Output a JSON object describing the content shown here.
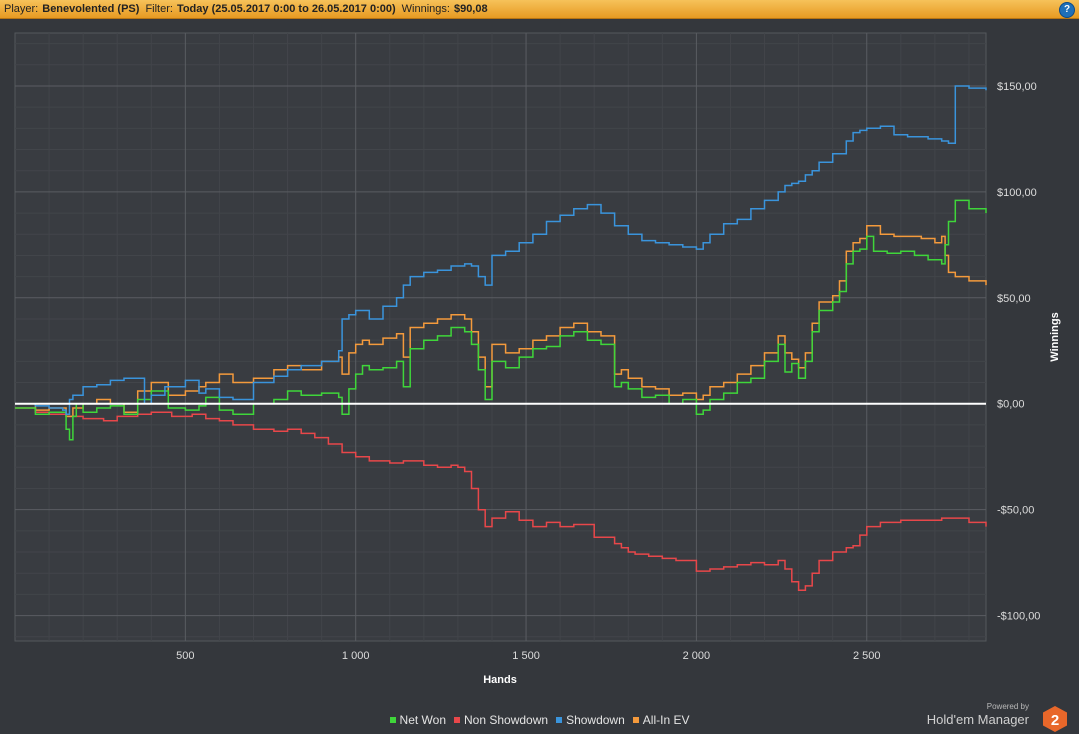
{
  "header": {
    "player_label": "Player:",
    "player_value": "Benevolented (PS)",
    "filter_label": "Filter:",
    "filter_value": "Today (25.05.2017 0:00 to 26.05.2017 0:00)",
    "winnings_label": "Winnings:",
    "winnings_value": "$90,08",
    "help_label": "?"
  },
  "brand": {
    "powered": "Powered by",
    "name": "Hold'em Manager",
    "logo_text": "2"
  },
  "chart_data": {
    "type": "line",
    "title": "",
    "xlabel": "Hands",
    "ylabel": "Winnings",
    "xlim": [
      0,
      2850
    ],
    "ylim": [
      -112,
      175
    ],
    "x_ticks": [
      500,
      1000,
      1500,
      2000,
      2500
    ],
    "x_tick_labels": [
      "500",
      "1 000",
      "1 500",
      "2 000",
      "2 500"
    ],
    "y_ticks": [
      150,
      100,
      50,
      0,
      -50,
      -100
    ],
    "y_tick_labels": [
      "$150,00",
      "$100,00",
      "$50,00",
      "$0,00",
      "-$50,00",
      "-$100,00"
    ],
    "grid": true,
    "legend_position": "bottom-center",
    "zero_line_color": "#ffffff",
    "series": [
      {
        "name": "Net Won",
        "color": "#3fd63a",
        "x": [
          0,
          60,
          100,
          150,
          160,
          170,
          180,
          200,
          240,
          280,
          320,
          360,
          400,
          450,
          500,
          540,
          560,
          600,
          640,
          700,
          760,
          800,
          840,
          900,
          950,
          960,
          980,
          1000,
          1020,
          1040,
          1080,
          1120,
          1140,
          1160,
          1200,
          1240,
          1280,
          1320,
          1340,
          1360,
          1380,
          1400,
          1440,
          1480,
          1520,
          1560,
          1600,
          1640,
          1680,
          1720,
          1760,
          1780,
          1800,
          1840,
          1880,
          1920,
          1960,
          2000,
          2020,
          2040,
          2080,
          2120,
          2160,
          2200,
          2240,
          2260,
          2280,
          2300,
          2320,
          2340,
          2360,
          2400,
          2420,
          2440,
          2460,
          2480,
          2500,
          2520,
          2560,
          2600,
          2640,
          2680,
          2720,
          2730,
          2740,
          2760,
          2800,
          2850
        ],
        "y": [
          -2,
          -5,
          -4,
          -12,
          -17,
          -6,
          0,
          -4,
          -2,
          -1,
          -5,
          2,
          6,
          -2,
          -3,
          -1,
          3,
          -3,
          -5,
          0,
          2,
          6,
          4,
          5,
          3,
          -5,
          7,
          14,
          18,
          16,
          17,
          20,
          8,
          26,
          30,
          32,
          36,
          34,
          28,
          16,
          2,
          20,
          17,
          22,
          26,
          27,
          32,
          34,
          30,
          28,
          8,
          10,
          7,
          3,
          4,
          0,
          2,
          -5,
          -3,
          2,
          5,
          10,
          12,
          20,
          28,
          15,
          19,
          12,
          20,
          34,
          44,
          48,
          53,
          66,
          72,
          73,
          79,
          72,
          71,
          72,
          70,
          68,
          66,
          75,
          86,
          96,
          92,
          90
        ]
      },
      {
        "name": "Non Showdown",
        "color": "#e8474a",
        "x": [
          0,
          60,
          100,
          150,
          200,
          260,
          300,
          360,
          400,
          460,
          520,
          560,
          600,
          640,
          700,
          760,
          800,
          840,
          880,
          920,
          960,
          1000,
          1040,
          1100,
          1140,
          1200,
          1240,
          1280,
          1300,
          1320,
          1340,
          1360,
          1380,
          1400,
          1440,
          1480,
          1520,
          1560,
          1600,
          1640,
          1700,
          1760,
          1780,
          1800,
          1820,
          1860,
          1900,
          1940,
          2000,
          2040,
          2080,
          2120,
          2160,
          2200,
          2240,
          2260,
          2280,
          2300,
          2320,
          2340,
          2360,
          2400,
          2440,
          2460,
          2480,
          2500,
          2540,
          2600,
          2660,
          2720,
          2760,
          2800,
          2850
        ],
        "y": [
          -2,
          -4,
          -5,
          -6,
          -7,
          -8,
          -6,
          -5,
          -4,
          -6,
          -5,
          -7,
          -8,
          -10,
          -12,
          -13,
          -12,
          -14,
          -16,
          -19,
          -23,
          -25,
          -27,
          -28,
          -27,
          -29,
          -30,
          -29,
          -30,
          -32,
          -40,
          -50,
          -58,
          -54,
          -51,
          -55,
          -58,
          -56,
          -58,
          -57,
          -63,
          -66,
          -68,
          -70,
          -71,
          -72,
          -73,
          -74,
          -79,
          -78,
          -77,
          -76,
          -75,
          -76,
          -74,
          -78,
          -84,
          -88,
          -86,
          -80,
          -74,
          -70,
          -68,
          -67,
          -62,
          -58,
          -56,
          -55,
          -55,
          -54,
          -54,
          -56,
          -58
        ]
      },
      {
        "name": "Showdown",
        "color": "#3a94dc",
        "x": [
          0,
          60,
          100,
          140,
          150,
          160,
          170,
          200,
          240,
          280,
          320,
          360,
          380,
          400,
          440,
          500,
          540,
          560,
          600,
          640,
          700,
          760,
          800,
          840,
          900,
          950,
          960,
          980,
          1000,
          1020,
          1040,
          1080,
          1120,
          1140,
          1160,
          1200,
          1240,
          1280,
          1320,
          1340,
          1360,
          1380,
          1400,
          1440,
          1480,
          1520,
          1560,
          1600,
          1640,
          1680,
          1720,
          1760,
          1800,
          1840,
          1880,
          1920,
          1960,
          2000,
          2020,
          2040,
          2080,
          2120,
          2160,
          2200,
          2240,
          2260,
          2280,
          2300,
          2320,
          2340,
          2360,
          2400,
          2440,
          2460,
          2480,
          2500,
          2540,
          2580,
          2620,
          2680,
          2720,
          2740,
          2760,
          2800,
          2850
        ],
        "y": [
          0,
          -1,
          -2,
          -3,
          -5,
          2,
          4,
          8,
          9,
          11,
          12,
          12,
          0,
          4,
          8,
          11,
          5,
          7,
          3,
          2,
          10,
          13,
          16,
          18,
          20,
          25,
          40,
          42,
          44,
          44,
          40,
          46,
          50,
          56,
          60,
          62,
          63,
          65,
          66,
          65,
          60,
          56,
          70,
          72,
          76,
          80,
          86,
          89,
          92,
          94,
          90,
          84,
          80,
          77,
          76,
          75,
          74,
          73,
          76,
          80,
          85,
          87,
          92,
          96,
          100,
          103,
          104,
          105,
          108,
          110,
          114,
          118,
          124,
          128,
          129,
          130,
          131,
          127,
          126,
          125,
          124,
          123,
          150,
          149,
          148
        ]
      },
      {
        "name": "All-In EV",
        "color": "#f49a3c",
        "x": [
          0,
          60,
          100,
          150,
          170,
          200,
          240,
          280,
          320,
          360,
          400,
          450,
          500,
          540,
          560,
          600,
          640,
          700,
          760,
          800,
          840,
          900,
          950,
          960,
          980,
          1000,
          1020,
          1040,
          1080,
          1120,
          1140,
          1160,
          1200,
          1240,
          1280,
          1320,
          1340,
          1360,
          1380,
          1400,
          1440,
          1480,
          1520,
          1560,
          1600,
          1640,
          1680,
          1720,
          1760,
          1780,
          1800,
          1840,
          1880,
          1920,
          1960,
          2000,
          2020,
          2040,
          2080,
          2120,
          2160,
          2200,
          2240,
          2260,
          2280,
          2300,
          2320,
          2340,
          2360,
          2400,
          2420,
          2440,
          2460,
          2480,
          2500,
          2540,
          2580,
          2620,
          2660,
          2700,
          2720,
          2730,
          2740,
          2760,
          2800,
          2850
        ],
        "y": [
          0,
          -3,
          -2,
          -6,
          -2,
          0,
          2,
          0,
          -4,
          6,
          10,
          4,
          6,
          8,
          10,
          14,
          10,
          12,
          16,
          18,
          16,
          20,
          22,
          14,
          24,
          28,
          30,
          28,
          31,
          33,
          22,
          36,
          38,
          40,
          42,
          40,
          34,
          22,
          8,
          28,
          24,
          26,
          30,
          32,
          36,
          38,
          34,
          32,
          14,
          16,
          12,
          8,
          7,
          4,
          5,
          2,
          4,
          8,
          10,
          14,
          18,
          24,
          32,
          24,
          21,
          17,
          24,
          38,
          48,
          51,
          58,
          72,
          76,
          78,
          84,
          80,
          79,
          79,
          78,
          76,
          79,
          70,
          62,
          60,
          58,
          56
        ]
      }
    ]
  }
}
